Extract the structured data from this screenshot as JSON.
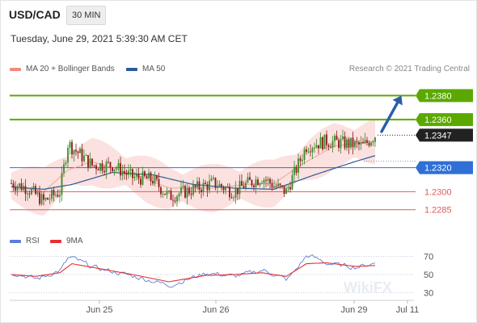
{
  "header": {
    "symbol": "USD/CAD",
    "timeframe": "30 MIN",
    "timestamp": "Tuesday, June 29, 2021 5:39:30 AM CET"
  },
  "legend": {
    "items": [
      {
        "label": "MA 20 + Bollinger Bands",
        "color": "#f08a84"
      },
      {
        "label": "MA 50",
        "color": "#2e5a9a"
      }
    ],
    "credit": "Research © 2021 Trading Central"
  },
  "rsi_legend": {
    "items": [
      {
        "label": "RSI",
        "color": "#5b7fd6"
      },
      {
        "label": "9MA",
        "color": "#e53030"
      }
    ]
  },
  "watermark": "WikiFX",
  "colors": {
    "bull": "#3a8a2a",
    "bear": "#8a1a1a",
    "target": "#5ca800",
    "current": "#222222",
    "pivot": "#2f6fd6",
    "support": "#e05a5a",
    "ma20_band": "#fad4d2",
    "ma50": "#2e5a9a",
    "arrow": "#2c5da8"
  },
  "chart_data": [
    {
      "type": "candlestick",
      "title": "USD/CAD 30 MIN",
      "x_ticks": [
        "Jun 25",
        "Jun 26",
        "Jun 29",
        "Jul 11"
      ],
      "ylim": [
        1.2268,
        1.2395
      ],
      "price_levels": [
        {
          "value": 1.238,
          "label": "1.2380",
          "role": "target"
        },
        {
          "value": 1.236,
          "label": "1.2360",
          "role": "target"
        },
        {
          "value": 1.2347,
          "label": "1.2347",
          "role": "current"
        },
        {
          "value": 1.232,
          "label": "1.2320",
          "role": "pivot"
        },
        {
          "value": 1.23,
          "label": "1.2300",
          "role": "support"
        },
        {
          "value": 1.2285,
          "label": "1.2285",
          "role": "support"
        }
      ],
      "path_anchors": [
        [
          0,
          1.2307
        ],
        [
          8,
          1.2303
        ],
        [
          16,
          1.2292
        ],
        [
          24,
          1.23
        ],
        [
          28,
          1.234
        ],
        [
          40,
          1.2322
        ],
        [
          50,
          1.2322
        ],
        [
          60,
          1.2312
        ],
        [
          70,
          1.231
        ],
        [
          78,
          1.2296
        ],
        [
          90,
          1.2302
        ],
        [
          100,
          1.2307
        ],
        [
          110,
          1.23
        ],
        [
          116,
          1.2306
        ],
        [
          124,
          1.2312
        ],
        [
          130,
          1.2305
        ],
        [
          136,
          1.23
        ],
        [
          146,
          1.2338
        ],
        [
          156,
          1.2342
        ],
        [
          166,
          1.234
        ],
        [
          174,
          1.2338
        ],
        [
          180,
          1.2347
        ]
      ],
      "ma20_anchors": [
        [
          0,
          1.2305
        ],
        [
          16,
          1.23
        ],
        [
          28,
          1.2318
        ],
        [
          40,
          1.2325
        ],
        [
          60,
          1.2315
        ],
        [
          78,
          1.2303
        ],
        [
          100,
          1.2303
        ],
        [
          116,
          1.2306
        ],
        [
          130,
          1.2307
        ],
        [
          146,
          1.2325
        ],
        [
          160,
          1.2338
        ],
        [
          180,
          1.2342
        ]
      ],
      "ma50_anchors": [
        [
          0,
          1.2304
        ],
        [
          16,
          1.2302
        ],
        [
          30,
          1.2306
        ],
        [
          50,
          1.2316
        ],
        [
          70,
          1.2314
        ],
        [
          90,
          1.2306
        ],
        [
          110,
          1.2303
        ],
        [
          130,
          1.2302
        ],
        [
          150,
          1.2314
        ],
        [
          170,
          1.2325
        ],
        [
          180,
          1.233
        ]
      ],
      "forecast_arrow": {
        "from": [
          180,
          1.235
        ],
        "to": [
          193,
          1.238
        ]
      }
    },
    {
      "type": "line",
      "title": "RSI",
      "ylim": [
        25,
        75
      ],
      "y_ticks": [
        30,
        50,
        70
      ],
      "series": [
        {
          "name": "RSI",
          "anchors": [
            [
              0,
              52
            ],
            [
              12,
              45
            ],
            [
              24,
              55
            ],
            [
              28,
              70
            ],
            [
              40,
              58
            ],
            [
              60,
              48
            ],
            [
              78,
              38
            ],
            [
              96,
              52
            ],
            [
              110,
              48
            ],
            [
              124,
              55
            ],
            [
              136,
              44
            ],
            [
              146,
              72
            ],
            [
              156,
              62
            ],
            [
              170,
              58
            ],
            [
              180,
              63
            ]
          ]
        },
        {
          "name": "9MA",
          "anchors": [
            [
              0,
              50
            ],
            [
              12,
              48
            ],
            [
              24,
              52
            ],
            [
              30,
              62
            ],
            [
              40,
              58
            ],
            [
              60,
              50
            ],
            [
              78,
              42
            ],
            [
              96,
              49
            ],
            [
              110,
              50
            ],
            [
              124,
              52
            ],
            [
              136,
              48
            ],
            [
              146,
              62
            ],
            [
              156,
              63
            ],
            [
              170,
              59
            ],
            [
              180,
              60
            ]
          ]
        }
      ]
    }
  ]
}
